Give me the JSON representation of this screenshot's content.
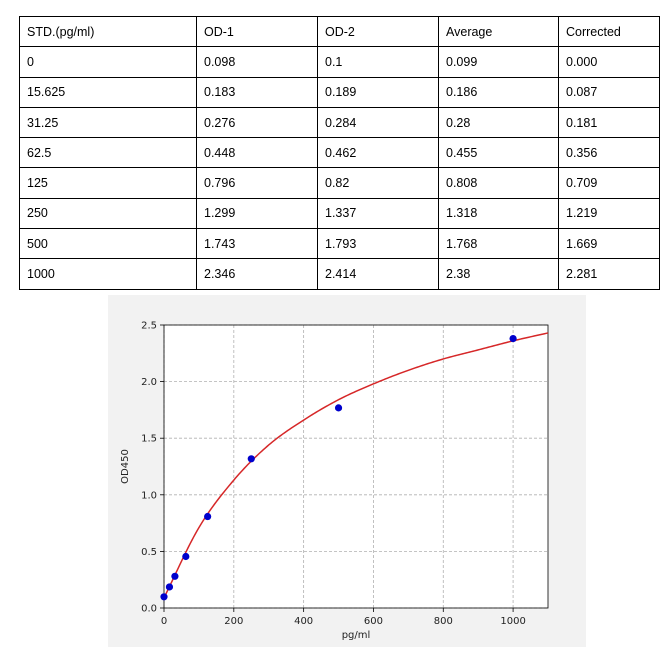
{
  "table": {
    "headers": [
      "STD.(pg/ml)",
      "OD-1",
      "OD-2",
      "Average",
      "Corrected"
    ],
    "rows": [
      [
        "0",
        "0.098",
        "0.1",
        "0.099",
        "0.000"
      ],
      [
        "15.625",
        "0.183",
        "0.189",
        "0.186",
        "0.087"
      ],
      [
        "31.25",
        "0.276",
        "0.284",
        "0.28",
        "0.181"
      ],
      [
        "62.5",
        "0.448",
        "0.462",
        "0.455",
        "0.356"
      ],
      [
        "125",
        "0.796",
        "0.82",
        "0.808",
        "0.709"
      ],
      [
        "250",
        "1.299",
        "1.337",
        "1.318",
        "1.219"
      ],
      [
        "500",
        "1.743",
        "1.793",
        "1.768",
        "1.669"
      ],
      [
        "1000",
        "2.346",
        "2.414",
        "2.38",
        "2.281"
      ]
    ]
  },
  "chart_data": {
    "type": "scatter",
    "title": "",
    "xlabel": "pg/ml",
    "ylabel": "OD450",
    "xlim": [
      0,
      1100
    ],
    "ylim": [
      0,
      2.5
    ],
    "xticks": [
      "0",
      "200",
      "400",
      "600",
      "800",
      "1000"
    ],
    "yticks": [
      "0.0",
      "0.5",
      "1.0",
      "1.5",
      "2.0",
      "2.5"
    ],
    "grid": true,
    "series": [
      {
        "mode": "markers",
        "color": "#0000cc",
        "x": [
          0,
          15.625,
          31.25,
          62.5,
          125,
          250,
          500,
          1000
        ],
        "y": [
          0.099,
          0.186,
          0.28,
          0.455,
          0.808,
          1.318,
          1.768,
          2.38
        ]
      },
      {
        "mode": "fitted-curve",
        "color": "#d62728",
        "x": [
          0,
          100,
          200,
          300,
          400,
          500,
          600,
          700,
          800,
          900,
          1000,
          1100
        ],
        "y": [
          0.09,
          0.71,
          1.13,
          1.44,
          1.66,
          1.84,
          1.98,
          2.1,
          2.2,
          2.28,
          2.36,
          2.43
        ]
      }
    ]
  }
}
